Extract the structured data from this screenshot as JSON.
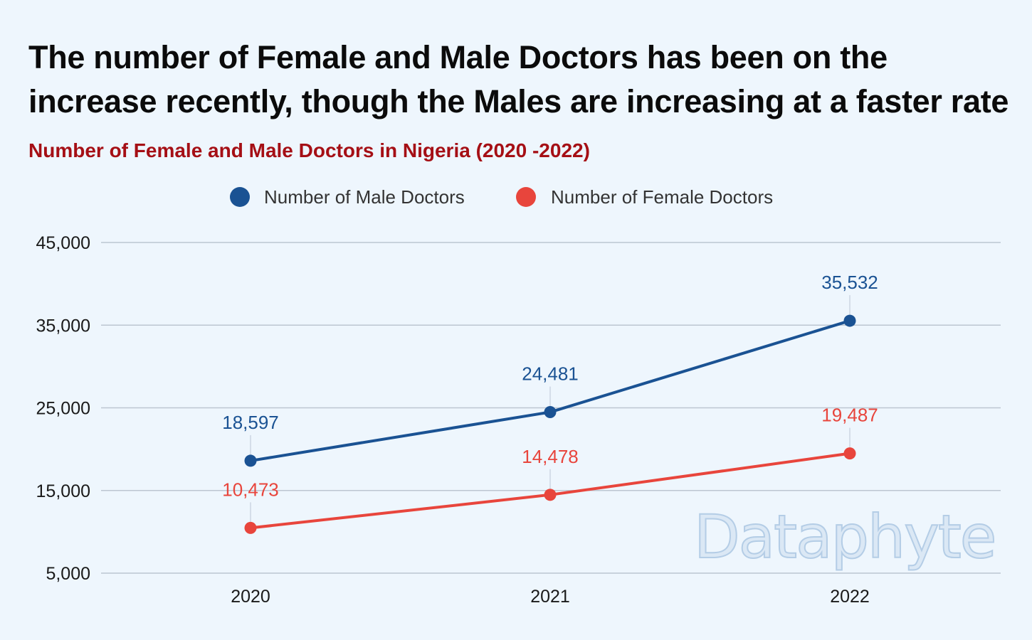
{
  "headline": "The number of Female and Male Doctors has been on the increase recently, though the Males are increasing at a faster rate",
  "watermark_text": "Dataphyte",
  "chart_data": {
    "type": "line",
    "title": "Number of Female and Male Doctors in Nigeria (2020 -2022)",
    "xlabel": "",
    "ylabel": "",
    "categories": [
      "2020",
      "2021",
      "2022"
    ],
    "series": [
      {
        "name": "Number of Male Doctors",
        "values": [
          18597,
          24481,
          35532
        ],
        "labels": [
          "18,597",
          "24,481",
          "35,532"
        ],
        "color": "#1a5293"
      },
      {
        "name": "Number of Female Doctors",
        "values": [
          10473,
          14478,
          19487
        ],
        "labels": [
          "10,473",
          "14,478",
          "19,487"
        ],
        "color": "#e8453c"
      }
    ],
    "ylim": [
      5000,
      45000
    ],
    "yticks": [
      5000,
      15000,
      25000,
      35000,
      45000
    ],
    "ytick_labels": [
      "5,000",
      "15,000",
      "25,000",
      "35,000",
      "45,000"
    ],
    "grid": true,
    "legend_position": "top-center",
    "colors": {
      "title": "#a50f15",
      "grid": "#bcc6d1",
      "background": "#eef6fd"
    }
  }
}
